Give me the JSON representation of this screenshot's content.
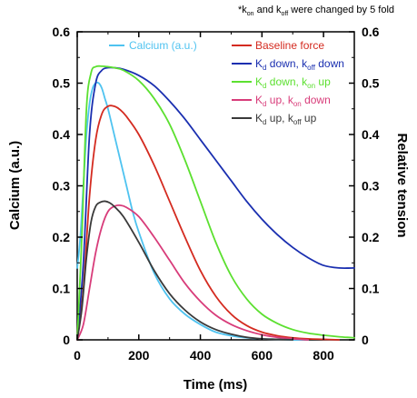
{
  "chart_data": {
    "type": "line",
    "note": {
      "star": "*k",
      "sub1": "on",
      "mid": " and k",
      "sub2": "off",
      "rest": " were changed by 5 fold"
    },
    "xlabel": "Time (ms)",
    "ylabel_left": "Calcium (a.u.)",
    "ylabel_right": "Relative tension",
    "xlim": [
      0,
      900
    ],
    "ylim_left": [
      0,
      0.6
    ],
    "ylim_right": [
      0,
      0.6
    ],
    "x_ticks": [
      0,
      200,
      400,
      600,
      800
    ],
    "x_tick_labels": [
      "0",
      "200",
      "400",
      "600",
      "800"
    ],
    "y_ticks": [
      0,
      0.1,
      0.2,
      0.3,
      0.4,
      0.5,
      0.6
    ],
    "y_tick_labels": [
      "0",
      "0.1",
      "0.2",
      "0.3",
      "0.4",
      "0.5",
      "0.6"
    ],
    "grid": false,
    "series": [
      {
        "name": "Calcium (a.u.)",
        "color": "#4fc3f0",
        "legend": {
          "main": "Calcium (a.u.)"
        },
        "x": [
          0,
          10,
          20,
          30,
          40,
          50,
          60,
          70,
          80,
          90,
          100,
          120,
          140,
          160,
          180,
          200,
          250,
          300,
          350,
          400,
          450,
          500,
          550,
          600,
          650,
          700,
          750
        ],
        "y": [
          0.14,
          0.2,
          0.3,
          0.4,
          0.46,
          0.49,
          0.5,
          0.5,
          0.49,
          0.47,
          0.45,
          0.4,
          0.35,
          0.3,
          0.25,
          0.21,
          0.13,
          0.08,
          0.05,
          0.03,
          0.015,
          0.008,
          0.004,
          0.002,
          0.001,
          0.0,
          0.0
        ]
      },
      {
        "name": "Baseline force",
        "color": "#d42b20",
        "legend": {
          "main": "Baseline force"
        },
        "x": [
          0,
          20,
          40,
          60,
          80,
          100,
          120,
          140,
          160,
          200,
          250,
          300,
          350,
          400,
          450,
          500,
          550,
          600,
          650,
          700,
          750,
          800,
          850
        ],
        "y": [
          0.0,
          0.1,
          0.28,
          0.39,
          0.44,
          0.455,
          0.455,
          0.448,
          0.435,
          0.4,
          0.34,
          0.27,
          0.2,
          0.135,
          0.085,
          0.05,
          0.028,
          0.015,
          0.008,
          0.004,
          0.002,
          0.001,
          0.0
        ]
      },
      {
        "name": "Kd down, koff down",
        "color": "#1a2fb0",
        "legend": {
          "main1": "K",
          "sub1": "d",
          "main2": " down, k",
          "sub2": "off",
          "main3": " down"
        },
        "x": [
          0,
          20,
          40,
          60,
          80,
          100,
          120,
          150,
          200,
          250,
          300,
          350,
          400,
          450,
          500,
          550,
          600,
          650,
          700,
          750,
          800,
          850,
          900
        ],
        "y": [
          0.0,
          0.15,
          0.4,
          0.5,
          0.525,
          0.53,
          0.53,
          0.527,
          0.515,
          0.495,
          0.465,
          0.43,
          0.39,
          0.35,
          0.31,
          0.27,
          0.235,
          0.205,
          0.18,
          0.16,
          0.145,
          0.14,
          0.14
        ]
      },
      {
        "name": "Kd down, kon up",
        "color": "#5ce030",
        "legend": {
          "main1": "K",
          "sub1": "d",
          "main2": " down, k",
          "sub2": "on",
          "main3": " up"
        },
        "x": [
          0,
          15,
          30,
          45,
          60,
          80,
          100,
          120,
          150,
          200,
          250,
          300,
          350,
          400,
          450,
          500,
          550,
          600,
          650,
          700,
          750,
          800,
          850,
          900
        ],
        "y": [
          0.0,
          0.2,
          0.45,
          0.52,
          0.532,
          0.533,
          0.532,
          0.53,
          0.525,
          0.505,
          0.47,
          0.42,
          0.35,
          0.27,
          0.19,
          0.125,
          0.08,
          0.05,
          0.032,
          0.02,
          0.013,
          0.009,
          0.006,
          0.004
        ]
      },
      {
        "name": "Kd up, kon down",
        "color": "#d83c7a",
        "legend": {
          "main1": "K",
          "sub1": "d",
          "main2": " up,  k",
          "sub2": "on",
          "main3": " down"
        },
        "x": [
          0,
          20,
          40,
          60,
          80,
          100,
          120,
          140,
          160,
          200,
          250,
          300,
          350,
          400,
          450,
          500,
          550,
          600,
          650,
          700,
          750
        ],
        "y": [
          0.0,
          0.03,
          0.1,
          0.17,
          0.22,
          0.25,
          0.26,
          0.262,
          0.258,
          0.24,
          0.2,
          0.155,
          0.11,
          0.075,
          0.048,
          0.03,
          0.018,
          0.01,
          0.005,
          0.002,
          0.0
        ]
      },
      {
        "name": "Kd up, koff up",
        "color": "#3a3a3a",
        "legend": {
          "main1": "K",
          "sub1": "d",
          "main2": " up, k",
          "sub2": "off",
          "main3": " up"
        },
        "x": [
          0,
          15,
          30,
          45,
          60,
          75,
          90,
          105,
          120,
          150,
          200,
          250,
          300,
          350,
          400,
          450,
          500,
          550,
          600,
          650,
          700
        ],
        "y": [
          0.0,
          0.06,
          0.16,
          0.23,
          0.26,
          0.268,
          0.27,
          0.267,
          0.26,
          0.24,
          0.19,
          0.135,
          0.09,
          0.058,
          0.035,
          0.02,
          0.011,
          0.005,
          0.002,
          0.001,
          0.0
        ]
      }
    ]
  }
}
